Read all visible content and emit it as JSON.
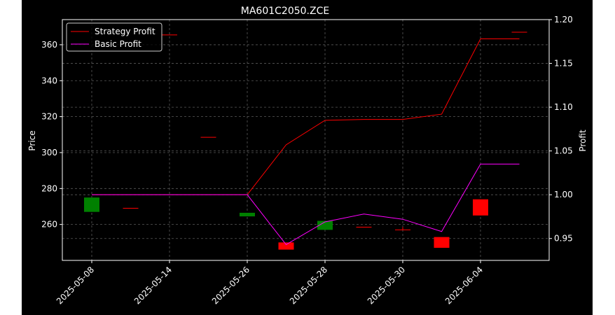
{
  "chart_data": {
    "type": "candlestick+line",
    "title": "MA601C2050.ZCE",
    "ylabel_left": "Price",
    "ylabel_right": "Profit",
    "grid": true,
    "legend_position": "top-left",
    "x_tick_labels": [
      "2025-05-08",
      "2025-05-14",
      "2025-05-26",
      "2025-05-28",
      "2025-05-30",
      "2025-06-04"
    ],
    "ylim_left": [
      240,
      374
    ],
    "yticks_left": [
      260,
      280,
      300,
      320,
      340,
      360
    ],
    "ylim_right": [
      0.925,
      1.2
    ],
    "yticks_right": [
      "0.95",
      "1.00",
      "1.05",
      "1.10",
      "1.15",
      "1.20"
    ],
    "candles": [
      {
        "open": 267,
        "close": 275,
        "high": 275,
        "low": 267
      },
      {
        "open": 269,
        "close": 269,
        "high": 269,
        "low": 269
      },
      {
        "open": 365.5,
        "close": 365.5,
        "high": 365.5,
        "low": 365.5
      },
      {
        "open": 308.5,
        "close": 308.5,
        "high": 308.5,
        "low": 308.5
      },
      {
        "open": 264.5,
        "close": 266.5,
        "high": 266.5,
        "low": 264.5
      },
      {
        "open": 250,
        "close": 246,
        "high": 250,
        "low": 246
      },
      {
        "open": 257,
        "close": 262,
        "high": 262,
        "low": 257
      },
      {
        "open": 258.5,
        "close": 258.5,
        "high": 258.5,
        "low": 258.5
      },
      {
        "open": 257,
        "close": 257,
        "high": 258.5,
        "low": 257
      },
      {
        "open": 253,
        "close": 247,
        "high": 253,
        "low": 247
      },
      {
        "open": 274,
        "close": 265,
        "high": 274,
        "low": 265
      },
      {
        "open": 367,
        "close": 367,
        "high": 367,
        "low": 367
      }
    ],
    "series": [
      {
        "name": "Strategy Profit",
        "color": "#ff0000",
        "x_index": [
          0,
          2,
          4,
          5,
          6,
          7,
          8,
          9,
          10,
          11
        ],
        "values": [
          1.0,
          1.0,
          1.0,
          1.057,
          1.085,
          1.086,
          1.086,
          1.092,
          1.178,
          1.178
        ]
      },
      {
        "name": "Basic Profit",
        "color": "#ff00ff",
        "x_index": [
          0,
          2,
          4,
          5,
          6,
          7,
          8,
          9,
          10,
          11
        ],
        "values": [
          1.0,
          1.0,
          1.0,
          0.943,
          0.969,
          0.978,
          0.972,
          0.958,
          1.035,
          1.035
        ]
      }
    ],
    "tick_index": [
      0,
      2,
      4,
      6,
      8,
      10
    ],
    "n_points": 12
  },
  "colors": {
    "background": "#000000",
    "up": "#008000",
    "down": "#ff0000",
    "axis": "#ffffff",
    "grid": "#5a5a5a"
  }
}
